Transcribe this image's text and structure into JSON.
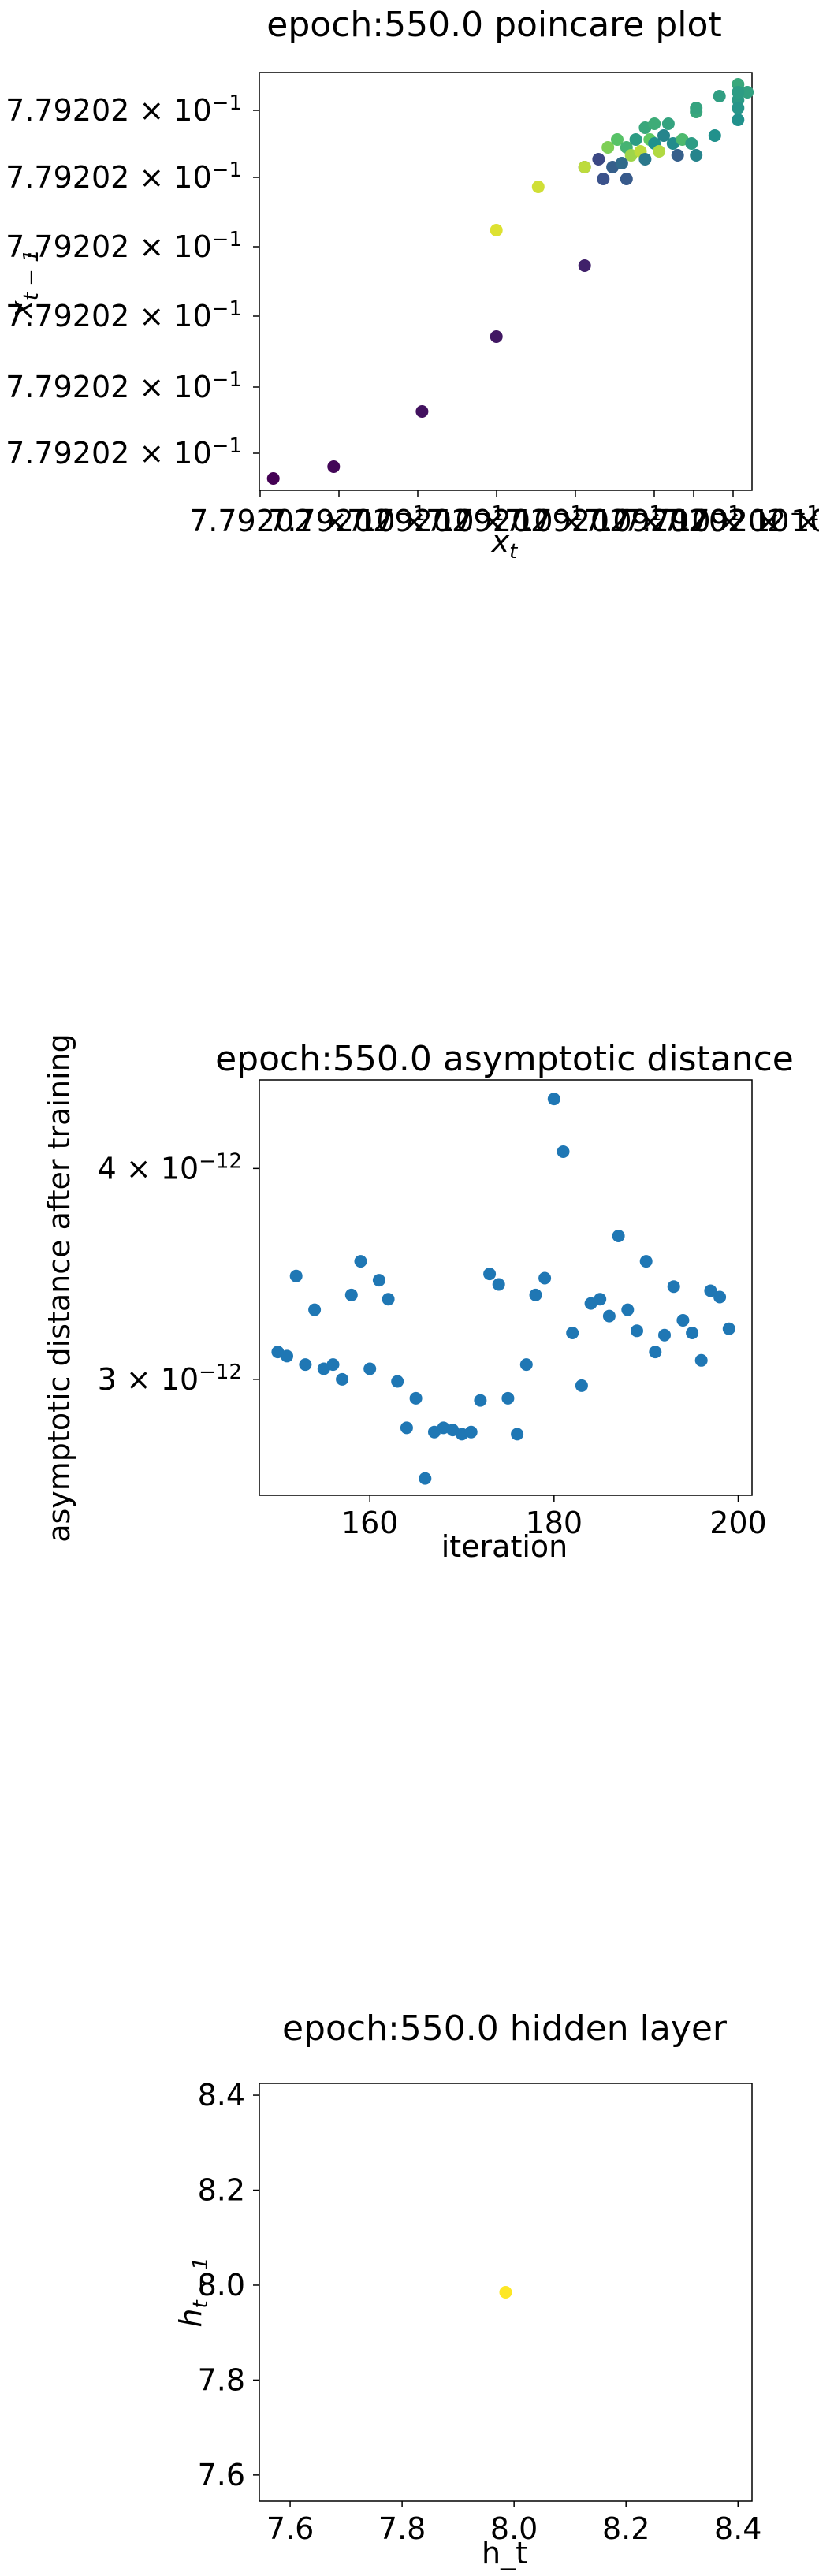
{
  "chart_data": [
    {
      "type": "scatter",
      "title": "epoch:550.0 poincare plot",
      "xlabel_base": "x",
      "xlabel_sub": "t",
      "ylabel_base": "x",
      "ylabel_sub": "t − 1",
      "y_tick_labels": [
        "7.79202 × 10",
        "7.79202 × 10",
        "7.79202 × 10",
        "7.79202 × 10",
        "7.79202 × 10",
        "7.79202 × 10"
      ],
      "y_tick_exp": "−1",
      "x_tick_labels": [
        "7.79202 × 10",
        "7.79202 × 10",
        "7.79202 × 10",
        "7.79202 × 10",
        "7.79202 × 10",
        "7.79202 × 10",
        "7.79202 × 10",
        "7.79202 × 10"
      ],
      "x_tick_exp": "−1",
      "colormap": "viridis",
      "xlim": [
        -0.03,
        1.03
      ],
      "ylim": [
        -0.03,
        1.03
      ],
      "points": [
        {
          "x": 0.0,
          "y": 0.0,
          "c": 0.0
        },
        {
          "x": 0.13,
          "y": 0.03,
          "c": 0.02
        },
        {
          "x": 0.32,
          "y": 0.17,
          "c": 0.05
        },
        {
          "x": 0.48,
          "y": 0.36,
          "c": 0.07
        },
        {
          "x": 0.67,
          "y": 0.54,
          "c": 0.1
        },
        {
          "x": 0.48,
          "y": 0.63,
          "c": 0.95
        },
        {
          "x": 0.57,
          "y": 0.74,
          "c": 0.93
        },
        {
          "x": 0.67,
          "y": 0.79,
          "c": 0.2
        },
        {
          "x": 0.67,
          "y": 0.79,
          "c": 0.9
        },
        {
          "x": 0.7,
          "y": 0.81,
          "c": 0.22
        },
        {
          "x": 0.71,
          "y": 0.76,
          "c": 0.25
        },
        {
          "x": 0.72,
          "y": 0.84,
          "c": 0.8
        },
        {
          "x": 0.73,
          "y": 0.79,
          "c": 0.3
        },
        {
          "x": 0.74,
          "y": 0.86,
          "c": 0.72
        },
        {
          "x": 0.75,
          "y": 0.8,
          "c": 0.35
        },
        {
          "x": 0.76,
          "y": 0.76,
          "c": 0.28
        },
        {
          "x": 0.76,
          "y": 0.84,
          "c": 0.65
        },
        {
          "x": 0.77,
          "y": 0.82,
          "c": 0.85
        },
        {
          "x": 0.78,
          "y": 0.86,
          "c": 0.55
        },
        {
          "x": 0.79,
          "y": 0.83,
          "c": 0.9
        },
        {
          "x": 0.8,
          "y": 0.89,
          "c": 0.6
        },
        {
          "x": 0.8,
          "y": 0.81,
          "c": 0.4
        },
        {
          "x": 0.81,
          "y": 0.86,
          "c": 0.75
        },
        {
          "x": 0.82,
          "y": 0.9,
          "c": 0.62
        },
        {
          "x": 0.82,
          "y": 0.85,
          "c": 0.5
        },
        {
          "x": 0.83,
          "y": 0.83,
          "c": 0.88
        },
        {
          "x": 0.84,
          "y": 0.87,
          "c": 0.45
        },
        {
          "x": 0.85,
          "y": 0.9,
          "c": 0.58
        },
        {
          "x": 0.86,
          "y": 0.85,
          "c": 0.48
        },
        {
          "x": 0.87,
          "y": 0.82,
          "c": 0.3
        },
        {
          "x": 0.88,
          "y": 0.86,
          "c": 0.68
        },
        {
          "x": 0.9,
          "y": 0.85,
          "c": 0.55
        },
        {
          "x": 0.91,
          "y": 0.93,
          "c": 0.6
        },
        {
          "x": 0.91,
          "y": 0.82,
          "c": 0.45
        },
        {
          "x": 0.91,
          "y": 0.94,
          "c": 0.58
        },
        {
          "x": 0.95,
          "y": 0.87,
          "c": 0.5
        },
        {
          "x": 0.96,
          "y": 0.97,
          "c": 0.56
        },
        {
          "x": 1.0,
          "y": 0.96,
          "c": 0.54
        },
        {
          "x": 1.0,
          "y": 1.0,
          "c": 0.6
        },
        {
          "x": 1.0,
          "y": 0.94,
          "c": 0.52
        },
        {
          "x": 1.0,
          "y": 0.91,
          "c": 0.5
        },
        {
          "x": 1.02,
          "y": 0.98,
          "c": 0.57
        },
        {
          "x": 1.0,
          "y": 0.98,
          "c": 0.55
        }
      ]
    },
    {
      "type": "scatter",
      "title": "epoch:550.0 asymptotic distance",
      "xlabel": "iteration",
      "ylabel": "asymptotic distance after training",
      "x_ticks": [
        160,
        180,
        200
      ],
      "y_ticks": [
        3e-12,
        4e-12
      ],
      "y_tick_labels": [
        "3 × 10",
        "4 × 10"
      ],
      "y_tick_exp": "−12",
      "xlim": [
        148,
        201.5
      ],
      "ylim": [
        2.45e-12,
        4.42e-12
      ],
      "color": "#1f77b4",
      "x": [
        150,
        151,
        152,
        153,
        154,
        155,
        156,
        157,
        158,
        159,
        160,
        161,
        162,
        163,
        164,
        165,
        166,
        167,
        168,
        169,
        170,
        171,
        172,
        173,
        174,
        175,
        176,
        177,
        178,
        179,
        180,
        181,
        182,
        183,
        184,
        185,
        186,
        187,
        188,
        189,
        190,
        191,
        192,
        193,
        194,
        195,
        196,
        197,
        198,
        199
      ],
      "y": [
        3.13e-12,
        3.11e-12,
        3.49e-12,
        3.07e-12,
        3.33e-12,
        3.05e-12,
        3.07e-12,
        3e-12,
        3.4e-12,
        3.56e-12,
        3.05e-12,
        3.47e-12,
        3.38e-12,
        2.99e-12,
        2.77e-12,
        2.91e-12,
        2.53e-12,
        2.75e-12,
        2.77e-12,
        2.76e-12,
        2.74e-12,
        2.75e-12,
        2.9e-12,
        3.5e-12,
        3.45e-12,
        2.91e-12,
        2.74e-12,
        3.07e-12,
        3.4e-12,
        3.48e-12,
        4.33e-12,
        4.08e-12,
        3.22e-12,
        2.97e-12,
        3.36e-12,
        3.38e-12,
        3.3e-12,
        3.68e-12,
        3.33e-12,
        3.23e-12,
        3.56e-12,
        3.13e-12,
        3.21e-12,
        3.44e-12,
        3.28e-12,
        3.22e-12,
        3.09e-12,
        3.42e-12,
        3.39e-12,
        3.24e-12
      ]
    },
    {
      "type": "scatter",
      "title": "epoch:550.0 hidden layer",
      "xlabel": "h_t",
      "ylabel_base": "h",
      "ylabel_sub": "t − 1",
      "x_ticks": [
        7.6,
        7.8,
        8.0,
        8.2,
        8.4
      ],
      "y_ticks": [
        7.6,
        7.8,
        8.0,
        8.2,
        8.4
      ],
      "xlim": [
        7.545,
        8.425
      ],
      "ylim": [
        7.545,
        8.425
      ],
      "color": "#fde725",
      "points": [
        {
          "x": 7.985,
          "y": 7.985
        }
      ]
    }
  ]
}
